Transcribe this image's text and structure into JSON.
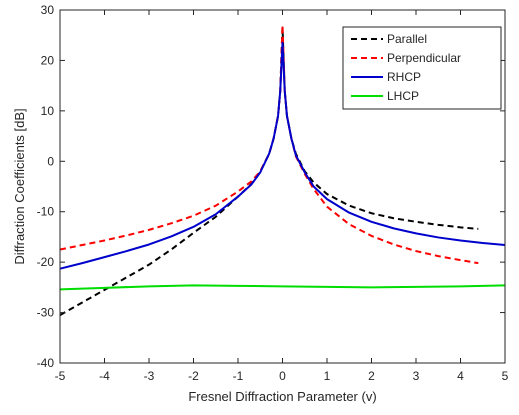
{
  "chart_data": {
    "type": "line",
    "title": "",
    "xlabel": "Fresnel Diffraction Parameter (v)",
    "ylabel": "Diffraction Coefficients [dB]",
    "xlim": [
      -5,
      5
    ],
    "ylim": [
      -40,
      30
    ],
    "xticks": [
      -5,
      -4,
      -3,
      -2,
      -1,
      0,
      1,
      2,
      3,
      4,
      5
    ],
    "yticks": [
      -40,
      -30,
      -20,
      -10,
      0,
      10,
      20,
      30
    ],
    "grid": false,
    "legend_position": "top-right",
    "series": [
      {
        "name": "Parallel",
        "color": "#000000",
        "dash": "dashed",
        "x": [
          -5,
          -4.5,
          -4,
          -3.5,
          -3,
          -2.5,
          -2,
          -1.5,
          -1,
          -0.7,
          -0.5,
          -0.3,
          -0.2,
          -0.1,
          -0.05,
          0,
          0.05,
          0.1,
          0.2,
          0.3,
          0.5,
          0.7,
          1,
          1.5,
          2,
          2.5,
          3,
          3.5,
          4,
          4.4
        ],
        "y": [
          -30.5,
          -28,
          -25.5,
          -23,
          -20.5,
          -17.5,
          -14.2,
          -11,
          -7,
          -4.5,
          -2,
          1.5,
          4.5,
          9,
          14,
          26.5,
          14,
          9,
          4.5,
          1.5,
          -2,
          -4.2,
          -6.5,
          -8.8,
          -10.3,
          -11.3,
          -12,
          -12.6,
          -13.1,
          -13.4
        ]
      },
      {
        "name": "Perpendicular",
        "color": "#ff0000",
        "dash": "dashed",
        "x": [
          -5,
          -4.5,
          -4,
          -3.5,
          -3,
          -2.5,
          -2,
          -1.5,
          -1,
          -0.7,
          -0.5,
          -0.3,
          -0.2,
          -0.1,
          -0.05,
          0,
          0.05,
          0.1,
          0.2,
          0.3,
          0.5,
          0.7,
          1,
          1.5,
          2,
          2.5,
          3,
          3.5,
          4,
          4.4
        ],
        "y": [
          -17.5,
          -16.6,
          -15.7,
          -14.7,
          -13.6,
          -12.3,
          -10.8,
          -8.8,
          -6,
          -4,
          -2,
          1.5,
          4.5,
          9,
          14,
          27,
          14,
          9,
          4.5,
          1,
          -2.5,
          -5.5,
          -9,
          -12.5,
          -14.8,
          -16.5,
          -17.8,
          -18.8,
          -19.6,
          -20.2
        ]
      },
      {
        "name": "RHCP",
        "color": "#0000cc",
        "dash": "solid",
        "x": [
          -5,
          -4.5,
          -4,
          -3.5,
          -3,
          -2.5,
          -2,
          -1.5,
          -1,
          -0.7,
          -0.5,
          -0.3,
          -0.2,
          -0.1,
          -0.05,
          0,
          0.05,
          0.1,
          0.2,
          0.3,
          0.5,
          0.7,
          1,
          1.5,
          2,
          2.5,
          3,
          3.5,
          4,
          4.5,
          5
        ],
        "y": [
          -21.3,
          -20.2,
          -19,
          -17.8,
          -16.5,
          -14.9,
          -13,
          -10.5,
          -7,
          -4.6,
          -2.2,
          1.5,
          4.5,
          9,
          14,
          23.5,
          14,
          9,
          4.5,
          1.2,
          -2.2,
          -5,
          -7.5,
          -10.2,
          -12,
          -13.3,
          -14.3,
          -15.1,
          -15.7,
          -16.2,
          -16.6
        ]
      },
      {
        "name": "LHCP",
        "color": "#00dd00",
        "dash": "solid",
        "x": [
          -5,
          -4,
          -3,
          -2,
          -1,
          0,
          1,
          2,
          3,
          4,
          5
        ],
        "y": [
          -25.4,
          -25.1,
          -24.8,
          -24.6,
          -24.7,
          -24.8,
          -24.9,
          -25,
          -24.9,
          -24.8,
          -24.6
        ]
      }
    ]
  }
}
